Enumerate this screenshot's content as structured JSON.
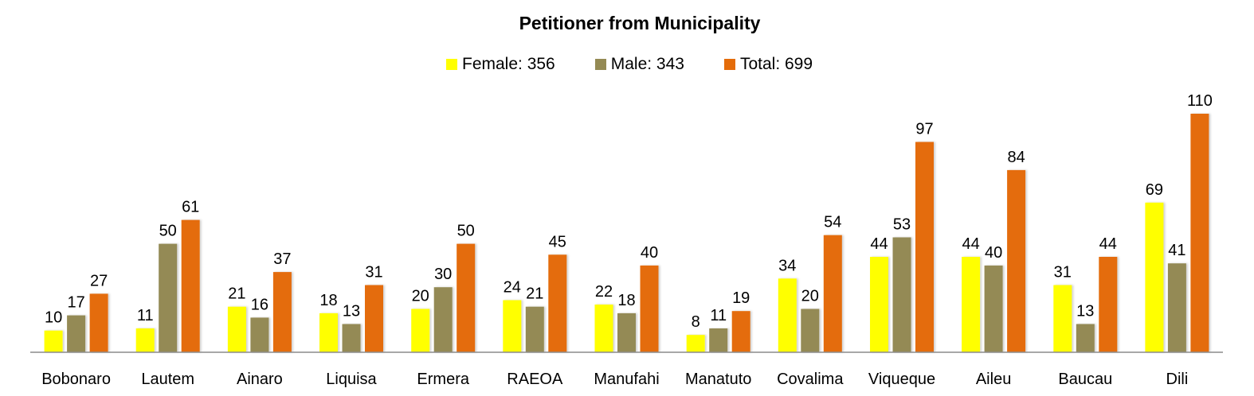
{
  "chart_data": {
    "type": "bar",
    "title": "Petitioner from Municipality",
    "xlabel": "",
    "ylabel": "",
    "ylim": [
      0,
      110
    ],
    "grid": false,
    "legend_position": "top",
    "categories": [
      "Bobonaro",
      "Lautem",
      "Ainaro",
      "Liquisa",
      "Ermera",
      "RAEOA",
      "Manufahi",
      "Manatuto",
      "Covalima",
      "Viqueque",
      "Aileu",
      "Baucau",
      "Dili"
    ],
    "series": [
      {
        "name": "Female",
        "legend": "Female: 356",
        "color": "#FFFF00",
        "values": [
          10,
          11,
          21,
          18,
          20,
          24,
          22,
          8,
          34,
          44,
          44,
          31,
          69
        ]
      },
      {
        "name": "Male",
        "legend": "Male: 343",
        "color": "#948A54",
        "values": [
          17,
          50,
          16,
          13,
          30,
          21,
          18,
          11,
          20,
          53,
          40,
          13,
          41
        ]
      },
      {
        "name": "Total",
        "legend": "Total: 699",
        "color": "#E46C0A",
        "values": [
          27,
          61,
          37,
          31,
          50,
          45,
          40,
          19,
          54,
          97,
          84,
          44,
          110
        ]
      }
    ]
  }
}
